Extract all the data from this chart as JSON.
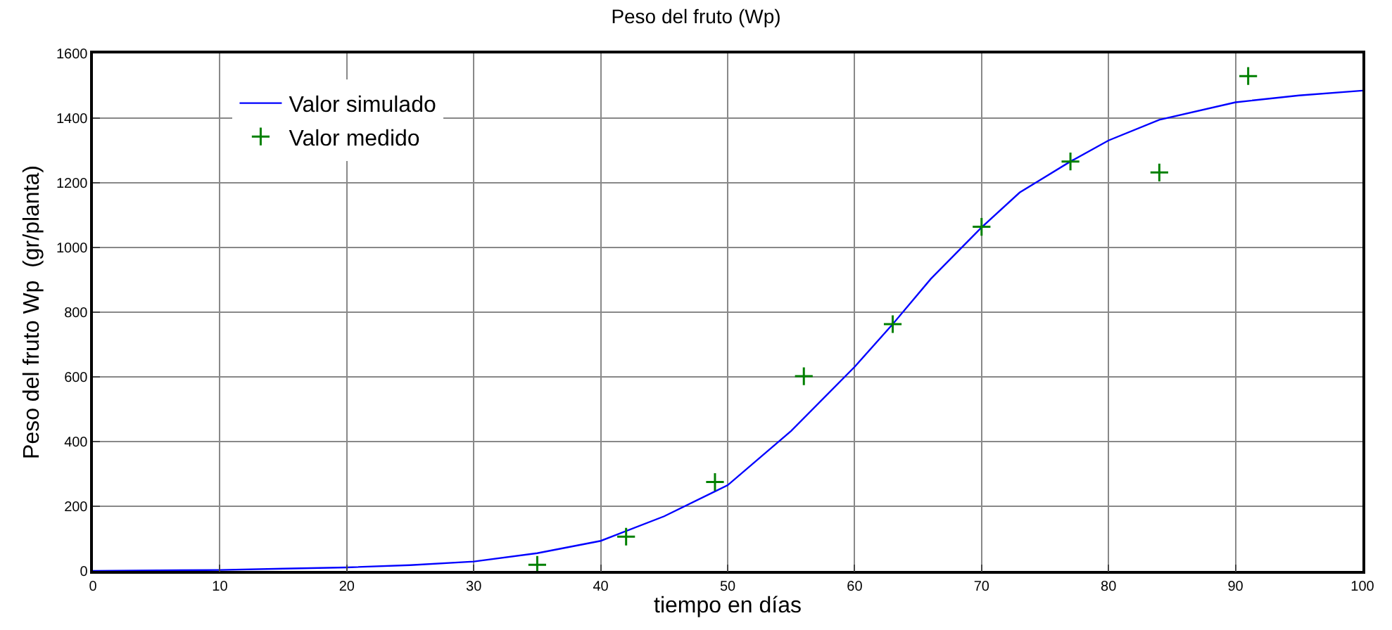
{
  "chart_data": {
    "type": "line",
    "title": "Peso del fruto (Wp)",
    "xlabel": "tiempo en días",
    "ylabel": "Peso del fruto Wp  (gr/planta)",
    "series": [
      {
        "name": "Valor simulado",
        "color": "#0000ff",
        "marker": "none",
        "x": [
          0,
          10,
          15,
          20,
          25,
          30,
          35,
          40,
          45,
          50,
          55,
          60,
          63,
          66,
          70,
          73,
          77,
          80,
          84,
          90,
          95,
          100
        ],
        "values": [
          0,
          3,
          7,
          11,
          18,
          29,
          55,
          93,
          169,
          265,
          433,
          631,
          763,
          903,
          1062,
          1170,
          1266,
          1331,
          1395,
          1449,
          1470,
          1485
        ]
      },
      {
        "name": "Valor medido",
        "type": "scatter",
        "color": "#008000",
        "marker": "cross",
        "x": [
          35,
          42,
          49,
          56,
          63,
          70,
          77,
          84,
          91
        ],
        "values": [
          19,
          106,
          275,
          602,
          763,
          1064,
          1266,
          1232,
          1530
        ]
      }
    ],
    "xlim": [
      0,
      100
    ],
    "xticks": [
      0,
      10,
      20,
      30,
      40,
      50,
      60,
      70,
      80,
      90,
      100
    ],
    "ylim": [
      0,
      1600
    ],
    "yticks": [
      0,
      200,
      400,
      600,
      800,
      1000,
      1200,
      1400,
      1600
    ],
    "grid": true,
    "legend": "top left",
    "line_style": "solid"
  }
}
